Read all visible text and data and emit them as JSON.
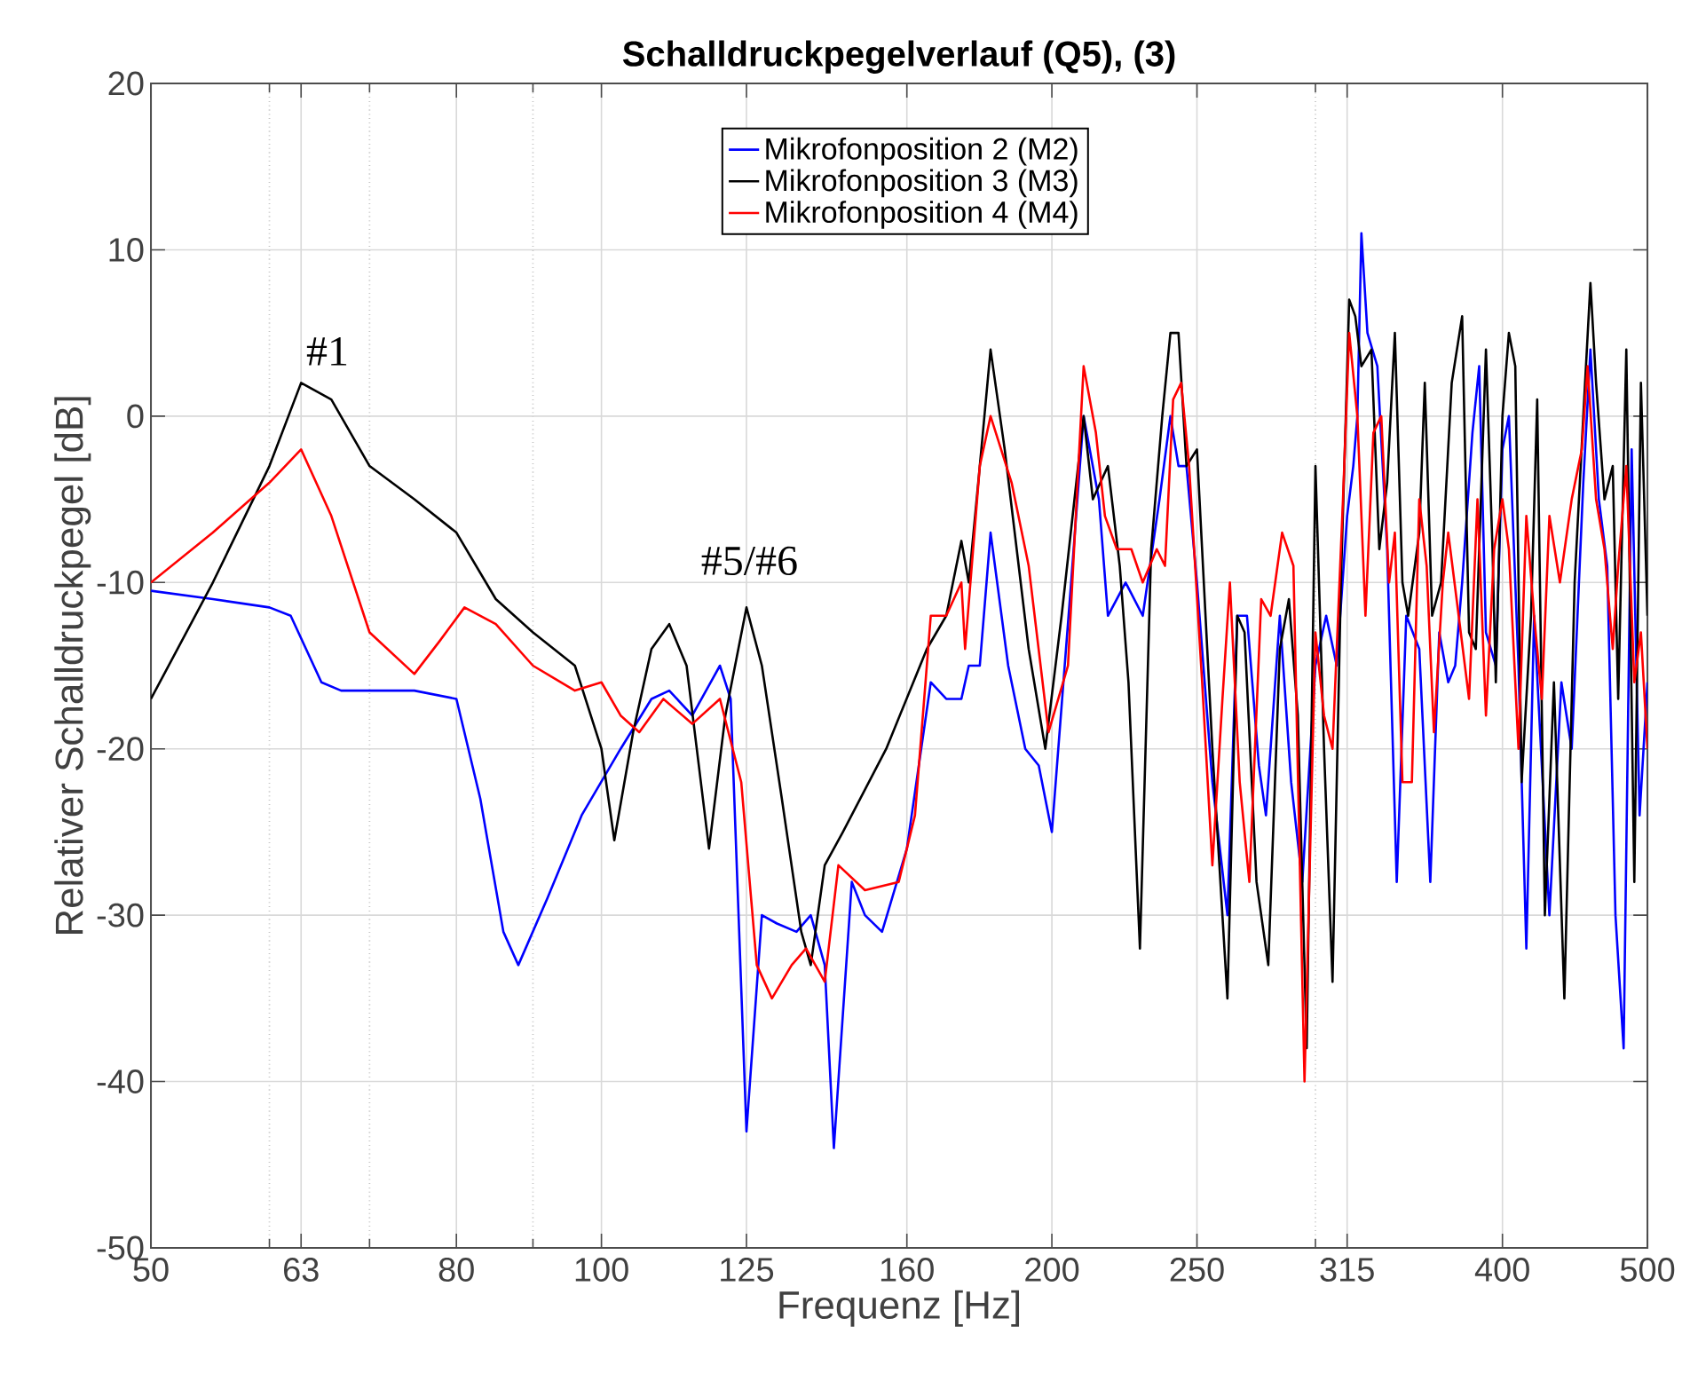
{
  "chart_data": {
    "type": "line",
    "title": "Schalldruckpegelverlauf (Q5), (3)",
    "xlabel": "Frequenz [Hz]",
    "ylabel": "Relativer Schalldruckpegel [dB]",
    "log": "x",
    "grid": true,
    "legend": "top",
    "line_style": "solid",
    "marker": "none",
    "xlim": [
      50,
      500
    ],
    "ylim": [
      -50,
      20
    ],
    "xticks": [
      50,
      {
        "value": 60,
        "label": null
      },
      63,
      {
        "value": 70,
        "label": null
      },
      80,
      {
        "value": 90,
        "label": null
      },
      100,
      125,
      160,
      200,
      250,
      {
        "value": 300,
        "label": null
      },
      315,
      400,
      500
    ],
    "yticks": [
      -50,
      -40,
      -30,
      -20,
      -10,
      0,
      10,
      20
    ],
    "annotations": [
      "#1",
      "#5/#6"
    ],
    "series": [
      {
        "name": "Mikrofonposition 2 (M2)",
        "color": "#0000ff",
        "x": [
          50,
          55,
          60,
          62,
          65,
          67,
          75,
          80,
          83,
          86,
          88,
          92,
          97,
          103,
          108,
          111,
          115,
          120,
          122,
          125,
          128,
          131,
          135,
          138,
          141,
          143,
          147,
          150,
          154,
          160,
          166,
          170,
          174,
          176,
          179,
          182,
          187,
          192,
          196,
          200,
          206,
          210,
          215,
          218,
          224,
          230,
          236,
          240,
          243,
          246,
          250,
          256,
          262,
          266,
          270,
          275,
          278,
          284,
          289,
          294,
          300,
          305,
          310,
          315,
          318,
          320,
          322,
          325,
          330,
          335,
          340,
          345,
          352,
          358,
          363,
          368,
          372,
          376,
          382,
          386,
          390,
          396,
          400,
          404,
          410,
          415,
          420,
          425,
          430,
          438,
          445,
          453,
          458,
          464,
          470,
          476,
          482,
          488,
          494,
          500
        ],
        "values": [
          -10.5,
          -11,
          -11.5,
          -12,
          -16,
          -16.5,
          -16.5,
          -17,
          -23,
          -31,
          -33,
          -29,
          -24,
          -20,
          -17,
          -16.5,
          -18,
          -15,
          -17,
          -43,
          -30,
          -30.5,
          -31,
          -30,
          -33,
          -44,
          -28,
          -30,
          -31,
          -26,
          -16,
          -17,
          -17,
          -15,
          -15,
          -7,
          -15,
          -20,
          -21,
          -25,
          -10,
          0,
          -5,
          -12,
          -10,
          -12,
          -5,
          0,
          -3,
          -3,
          -10,
          -22,
          -30,
          -12,
          -12,
          -21,
          -24,
          -12,
          -22,
          -28,
          -15,
          -12,
          -15,
          -6,
          -3,
          0,
          11,
          5,
          3,
          -8,
          -28,
          -12,
          -14,
          -28,
          -13,
          -16,
          -15,
          -10,
          -1,
          3,
          -13,
          -15,
          -2,
          0,
          -15,
          -32,
          -12,
          -21,
          -30,
          -16,
          -20,
          -4,
          4,
          -5,
          -9,
          -30,
          -38,
          -2,
          -24,
          -16
        ]
      },
      {
        "name": "Mikrofonposition 3 (M3)",
        "color": "#000000",
        "x": [
          50,
          55,
          60,
          63,
          66,
          70,
          75,
          80,
          85,
          90,
          96,
          100,
          102,
          105,
          108,
          111,
          114,
          118,
          121,
          125,
          128,
          132,
          136,
          138,
          141,
          145,
          155,
          165,
          170,
          174,
          176,
          179,
          182,
          186,
          193,
          198,
          203,
          210,
          213,
          218,
          222,
          225,
          229,
          233,
          237,
          240,
          243,
          246,
          250,
          256,
          262,
          266,
          269,
          274,
          279,
          284,
          288,
          292,
          296,
          300,
          304,
          308,
          312,
          316,
          319,
          322,
          327,
          331,
          335,
          339,
          343,
          346,
          352,
          355,
          359,
          364,
          370,
          376,
          380,
          384,
          390,
          394,
          396,
          400,
          404,
          408,
          412,
          418,
          422,
          427,
          433,
          440,
          447,
          453,
          458,
          462,
          468,
          474,
          478,
          484,
          490,
          495,
          500
        ],
        "values": [
          -17,
          -10,
          -3,
          2,
          1,
          -3,
          -5,
          -7,
          -11,
          -13,
          -15,
          -20,
          -25.5,
          -19,
          -14,
          -12.5,
          -15,
          -26,
          -18,
          -11.5,
          -15,
          -23,
          -31,
          -33,
          -27,
          -25,
          -20,
          -14,
          -12,
          -7.5,
          -10,
          -3,
          4,
          -2,
          -14,
          -20,
          -12,
          0,
          -5,
          -3,
          -9,
          -16,
          -32,
          -8,
          0,
          5,
          5,
          -3,
          -2,
          -20,
          -35,
          -12,
          -13,
          -28,
          -33,
          -14,
          -11,
          -18,
          -38,
          -3,
          -20,
          -34,
          -10,
          7,
          6,
          3,
          4,
          -8,
          -4,
          5,
          -10,
          -12,
          -7,
          2,
          -12,
          -10,
          2,
          6,
          -13,
          -14,
          4,
          -8,
          -16,
          0,
          5,
          3,
          -22,
          -12,
          1,
          -30,
          -16,
          -35,
          -10,
          0,
          8,
          2,
          -5,
          -3,
          -17,
          4,
          -28,
          2,
          -12
        ]
      },
      {
        "name": "Mikrofonposition 4 (M4)",
        "color": "#ff0000",
        "x": [
          50,
          55,
          60,
          63,
          66,
          70,
          75,
          78,
          81,
          85,
          90,
          96,
          100,
          103,
          106,
          110,
          115,
          120,
          124,
          127,
          130,
          134,
          137,
          141,
          144,
          150,
          158,
          162,
          166,
          170,
          174,
          175,
          179,
          182,
          188,
          193,
          199,
          205,
          210,
          214,
          217,
          221,
          226,
          230,
          235,
          238,
          241,
          244,
          247,
          252,
          256,
          260,
          263,
          267,
          271,
          276,
          280,
          285,
          290,
          295,
          300,
          304,
          308,
          313,
          316,
          320,
          324,
          328,
          332,
          336,
          339,
          343,
          348,
          352,
          356,
          360,
          365,
          368,
          374,
          380,
          385,
          390,
          395,
          400,
          404,
          410,
          415,
          420,
          425,
          430,
          437,
          445,
          452,
          456,
          462,
          468,
          474,
          478,
          484,
          490,
          495,
          500
        ],
        "values": [
          -10,
          -7,
          -4,
          -2,
          -6,
          -13,
          -15.5,
          -13.5,
          -11.5,
          -12.5,
          -15,
          -16.5,
          -16,
          -18,
          -19,
          -17,
          -18.5,
          -17,
          -22,
          -33,
          -35,
          -33,
          -32,
          -34,
          -27,
          -28.5,
          -28,
          -24,
          -12,
          -12,
          -10,
          -14,
          -3,
          0,
          -4,
          -9,
          -19,
          -15,
          3,
          -1,
          -6,
          -8,
          -8,
          -10,
          -8,
          -9,
          1,
          2,
          -3,
          -16,
          -27,
          -17,
          -10,
          -22,
          -28,
          -11,
          -12,
          -7,
          -9,
          -40,
          -13,
          -18,
          -20,
          -5,
          5,
          0,
          -12,
          -1,
          0,
          -10,
          -7,
          -22,
          -22,
          -5,
          -9,
          -19,
          -10,
          -7,
          -12,
          -17,
          -5,
          -18,
          -8,
          -5,
          -8,
          -20,
          -6,
          -12,
          -17,
          -6,
          -10,
          -5,
          -2,
          3,
          -5,
          -8,
          -14,
          -9,
          -3,
          -16,
          -13,
          -20
        ]
      }
    ]
  }
}
